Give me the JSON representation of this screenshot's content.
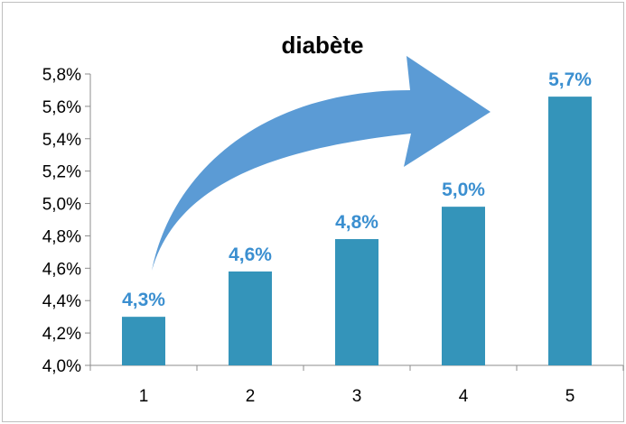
{
  "chart_data": {
    "type": "bar",
    "title": "diabète",
    "xlabel": "",
    "ylabel": "",
    "categories": [
      "1",
      "2",
      "3",
      "4",
      "5"
    ],
    "values": [
      4.3,
      4.58,
      4.78,
      4.98,
      5.66
    ],
    "data_labels": [
      "4,3%",
      "4,6%",
      "4,8%",
      "5,0%",
      "5,7%"
    ],
    "ylim": [
      4.0,
      5.8
    ],
    "y_ticks": [
      4.0,
      4.2,
      4.4,
      4.6,
      4.8,
      5.0,
      5.2,
      5.4,
      5.6,
      5.8
    ],
    "y_tick_labels": [
      "4,0%",
      "4,2%",
      "4,4%",
      "4,6%",
      "4,8%",
      "5,0%",
      "5,2%",
      "5,4%",
      "5,6%",
      "5,8%"
    ],
    "grid": false,
    "legend": "none",
    "bar_color": "#3494BA",
    "label_color": "#3B8FD0",
    "arrow_color": "#5B9BD5",
    "arrow_icon": "trend-arrow-icon"
  }
}
